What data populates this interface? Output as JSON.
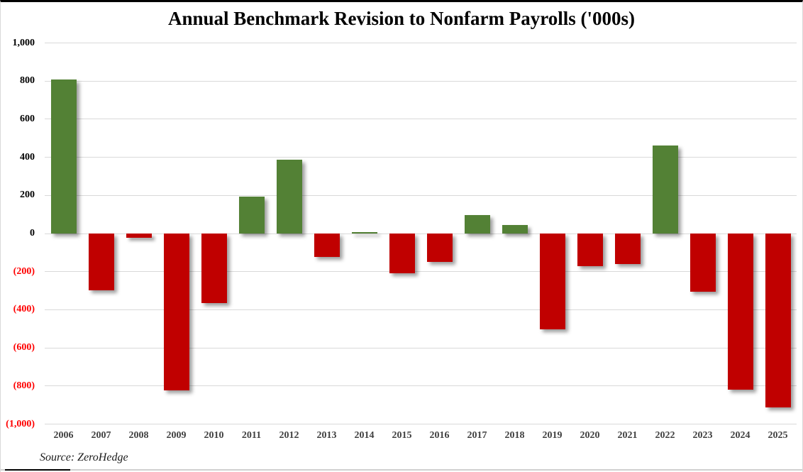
{
  "title": "Annual Benchmark Revision to Nonfarm Payrolls ('000s)",
  "source": "Source: ZeroHedge",
  "colors": {
    "positive_bar": "#538135",
    "negative_bar": "#C00000",
    "gridline": "#D9D9D9",
    "positive_tick_label": "#000000",
    "negative_tick_label": "#FF0000",
    "xtick_label": "#404040",
    "title_text": "#000000",
    "top_border": "#000000"
  },
  "chart_data": {
    "type": "bar",
    "title": "Annual Benchmark Revision to Nonfarm Payrolls ('000s)",
    "xlabel": "",
    "ylabel": "",
    "categories": [
      "2006",
      "2007",
      "2008",
      "2009",
      "2010",
      "2011",
      "2012",
      "2013",
      "2014",
      "2015",
      "2016",
      "2017",
      "2018",
      "2019",
      "2020",
      "2021",
      "2022",
      "2023",
      "2024",
      "2025"
    ],
    "values": [
      810,
      -297,
      -21,
      -824,
      -366,
      192,
      386,
      -124,
      7,
      -208,
      -150,
      95,
      43,
      -501,
      -173,
      -161,
      462,
      -306,
      -818,
      -911
    ],
    "ylim": [
      -1000,
      1000
    ],
    "ytick_values": [
      1000,
      800,
      600,
      400,
      200,
      0,
      -200,
      -400,
      -600,
      -800,
      -1000
    ],
    "ytick_labels": [
      "1,000",
      "800",
      "600",
      "400",
      "200",
      "0",
      "(200)",
      "(400)",
      "(600)",
      "(800)",
      "(1,000)"
    ],
    "grid": true,
    "legend": "none",
    "annotation": "positive bars green, negative bars red, negative axis labels in red parentheses"
  }
}
